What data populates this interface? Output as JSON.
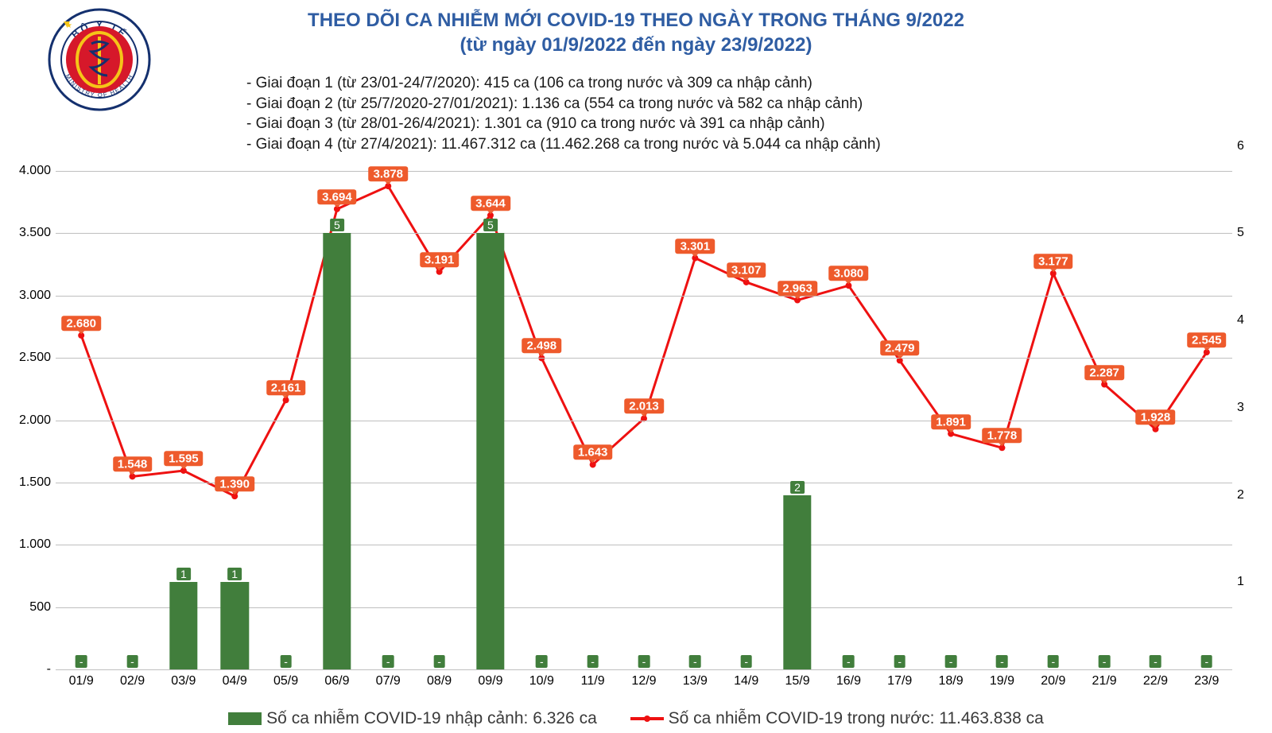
{
  "title_line1": "THEO DÕI CA NHIỄM MỚI COVID-19 THEO NGÀY TRONG THÁNG 9/2022",
  "title_line2": "(từ ngày 01/9/2022 đến ngày 23/9/2022)",
  "title_color": "#2f5da3",
  "notes": [
    "- Giai đoạn 1 (từ 23/01-24/7/2020): 415 ca (106 ca trong nước và 309 ca nhập cảnh)",
    "- Giai đoạn 2 (từ 25/7/2020-27/01/2021): 1.136 ca (554 ca trong nước và 582 ca nhập cảnh)",
    "- Giai đoạn 3 (từ 28/01-26/4/2021): 1.301 ca (910 ca trong nước và 391 ca nhập cảnh)",
    "- Giai đoạn 4 (từ 27/4/2021): 11.467.312 ca (11.462.268 ca trong nước và 5.044 ca nhập cảnh)"
  ],
  "chart": {
    "type": "combo-bar-line",
    "categories": [
      "01/9",
      "02/9",
      "03/9",
      "04/9",
      "05/9",
      "06/9",
      "07/9",
      "08/9",
      "09/9",
      "10/9",
      "11/9",
      "12/9",
      "13/9",
      "14/9",
      "15/9",
      "16/9",
      "17/9",
      "18/9",
      "19/9",
      "20/9",
      "21/9",
      "22/9",
      "23/9"
    ],
    "y_left": {
      "min": 0,
      "max": 4000,
      "step": 500,
      "tick_format": [
        "-",
        "500",
        "1.000",
        "1.500",
        "2.000",
        "2.500",
        "3.000",
        "3.500",
        "4.000"
      ],
      "fontsize": 16
    },
    "y_right": {
      "min": 0,
      "max": 6,
      "step": 1,
      "last_tick": 6,
      "fontsize": 16
    },
    "line": {
      "values": [
        2680,
        1548,
        1595,
        1390,
        2161,
        3694,
        3878,
        3191,
        3644,
        2498,
        1643,
        2013,
        3301,
        3107,
        2963,
        3080,
        2479,
        1891,
        1778,
        3177,
        2287,
        1928,
        2545
      ],
      "labels": [
        "2.680",
        "1.548",
        "1.595",
        "1.390",
        "2.161",
        "3.694",
        "3.878",
        "3.191",
        "3.644",
        "2.498",
        "1.643",
        "2.013",
        "3.301",
        "3.107",
        "2.963",
        "3.080",
        "2.479",
        "1.891",
        "1.778",
        "3.177",
        "2.287",
        "1.928",
        "2.545"
      ],
      "color": "#ee1111",
      "width": 3,
      "marker_radius": 4,
      "label_bg": "#ee5a2c",
      "label_color": "#ffffff"
    },
    "bars": {
      "values": [
        0,
        0,
        1,
        1,
        0,
        5,
        0,
        0,
        5,
        0,
        0,
        0,
        0,
        0,
        2,
        0,
        0,
        0,
        0,
        0,
        0,
        0,
        0
      ],
      "labels": [
        "-",
        "-",
        "1",
        "1",
        "-",
        "5",
        "-",
        "-",
        "5",
        "-",
        "-",
        "-",
        "-",
        "-",
        "2",
        "-",
        "-",
        "-",
        "-",
        "-",
        "-",
        "-",
        "-"
      ],
      "color": "#417e3c",
      "label_color": "#ffffff",
      "width_frac": 0.55
    },
    "grid_color": "#bfbfbf",
    "background": "#ffffff"
  },
  "legend": {
    "bar_text": "Số ca nhiễm COVID-19 nhập cảnh: 6.326 ca",
    "line_text": "Số ca nhiễm COVID-19 trong nước: 11.463.838 ca",
    "bar_color": "#417e3c",
    "line_color": "#ee1111",
    "fontsize": 21
  },
  "logo": {
    "outer_text_top": "BỘ Y TẾ",
    "outer_text_bottom": "MINISTRY OF HEALTH",
    "ring_color": "#14306e",
    "flag_red": "#d6182a",
    "flag_yellow": "#f5c518",
    "snake_color": "#14306e"
  }
}
